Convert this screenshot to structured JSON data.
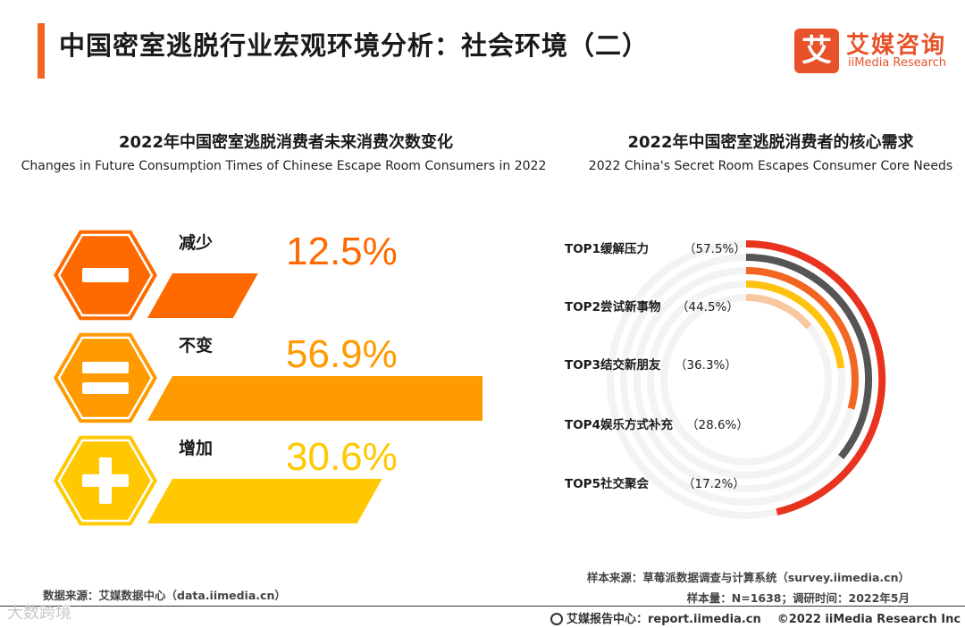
{
  "header": {
    "title": "中国密室逃脱行业宏观环境分析：社会环境（二）",
    "logo_mark": "艾",
    "logo_cn": "艾媒咨询",
    "logo_en": "iiMedia Research",
    "accent_color": "#f26522"
  },
  "chart_data": [
    {
      "type": "bar",
      "title": "2022年中国密室逃脱消费者未来消费次数变化",
      "subtitle": "Changes in Future Consumption Times of Chinese Escape Room Consumers in 2022",
      "categories": [
        "减少",
        "不变",
        "增加"
      ],
      "values": [
        12.5,
        56.9,
        30.6
      ],
      "value_labels": [
        "12.5%",
        "56.9%",
        "30.6%"
      ],
      "icons": [
        "minus-icon",
        "equals-icon",
        "plus-icon"
      ],
      "colors": [
        "#ff6a00",
        "#ff9a00",
        "#ffc800"
      ],
      "unit": "%"
    },
    {
      "type": "radial-bar",
      "title": "2022年中国密室逃脱消费者的核心需求",
      "subtitle": "2022 China's Secret Room Escapes Consumer Core Needs",
      "categories": [
        "TOP1缓解压力",
        "TOP2尝试新事物",
        "TOP3结交新朋友",
        "TOP4娱乐方式补充",
        "TOP5社交聚会"
      ],
      "values": [
        57.5,
        44.5,
        36.3,
        28.6,
        17.2
      ],
      "value_labels": [
        "（57.5%）",
        "（44.5%）",
        "（36.3%）",
        "（28.6%）",
        "（17.2%）"
      ],
      "colors": [
        "#e8331f",
        "#555555",
        "#f26522",
        "#ffc20e",
        "#f8c8a0"
      ],
      "unit": "%"
    }
  ],
  "sources": {
    "left": "数据来源：艾媒数据中心（data.iimedia.cn）",
    "right_1": "样本来源：草莓派数据调查与计算系统（survey.iimedia.cn）",
    "right_2": "样本量：N=1638；调研时间：2022年5月"
  },
  "footer": {
    "watermark": "大数跨境",
    "report_center": "艾媒报告中心：report.iimedia.cn",
    "copyright": "©2022  iiMedia Research  Inc"
  }
}
